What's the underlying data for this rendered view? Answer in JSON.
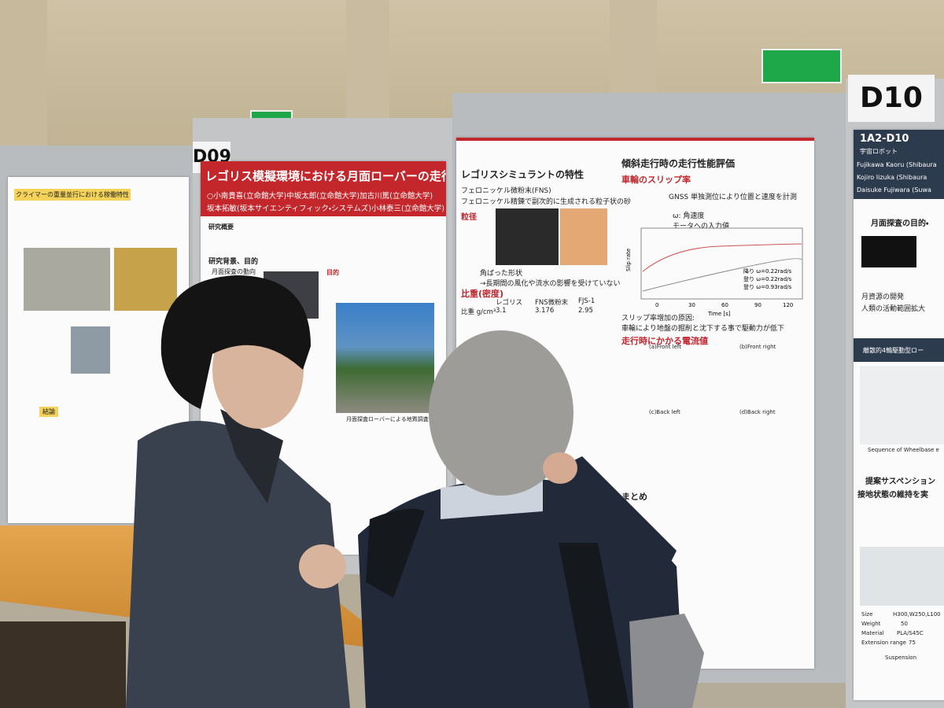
{
  "signs": {
    "d09": "D09",
    "d10": "D10"
  },
  "poster_left": {
    "heading": "クライマーの重量並行における稼働特性",
    "section": "結論"
  },
  "poster_d09": {
    "title": "レゴリス模擬環境における月面ローバーの走行特性",
    "authors": [
      "○小南貴喜(立命館大学)中坂太郎(立命館大学)加古川篤(立命館大学)",
      "坂本拓敏(坂本サイエンティフィック・システムズ)小林泰三(立命館大学)"
    ],
    "sections": [
      "研究概要",
      "研究背景、目的",
      "月面探査の動向",
      "目的"
    ],
    "caption": "月面探査ローバーによる地質調査"
  },
  "poster_right": {
    "left_title": "レゴリスシミュラントの特性",
    "fns": "フェロニッケル微粉末(FNS)",
    "fns_note": "フェロニッケル精錬で副次的に生成される粒子状の砂",
    "size_heading": "粒径",
    "shape": "角ばった形状",
    "shape_note": "→長期間の風化や流水の影響を受けていない",
    "density_heading": "比重(密度)",
    "table": {
      "header": [
        "レゴリス",
        "FNS微粉末",
        "FJS-1"
      ],
      "row_label": "比重 g/cm³",
      "row": [
        3.1,
        3.176,
        2.95
      ]
    },
    "right_title": "傾斜走行時の走行性能評価",
    "slip_heading": "車輪のスリップ率",
    "gnss": "GNSS 単独測位により位置と速度を計測",
    "omega": "ω: 角速度",
    "motor": "モータへの入力値",
    "chart": {
      "ylabel": "Slip rate",
      "xlabel": "Time [s]",
      "xticks": [
        0,
        30,
        60,
        90,
        120
      ],
      "legend": [
        "降り ω=0.22rad/s",
        "登り ω=0.22rad/s",
        "登り ω=0.93rad/s"
      ]
    },
    "cause": "スリップ率増加の原因:",
    "cause_note": "車輪により地盤の掘削と沈下する事で駆動力が低下",
    "current_heading": "走行時にかかる電流値",
    "panels": [
      "(a)Front left",
      "(b)Front right",
      "(c)Back left",
      "(d)Back right"
    ],
    "summary": "まとめ"
  },
  "poster_d10": {
    "id": "1A2-D10",
    "field": "宇宙ロボット",
    "authors": [
      "Fujikawa Kaoru (Shibaura",
      "Kojiro Iizuka (Shibaura",
      "Daisuke Fujiwara (Suwa"
    ],
    "purpose": "月面探査の目的・",
    "bullets": [
      "月資源の開発",
      "人類の活動範囲拡大"
    ],
    "drive": "離散的4輪駆動型ロー",
    "sequence": "Sequence of Wheelbase e",
    "proposal": [
      "提案サスペンション",
      "接地状態の維持を実"
    ],
    "spec": [
      [
        "Size",
        "H300,W250,L100"
      ],
      [
        "Weight",
        "50"
      ],
      [
        "Material",
        "PLA/S45C"
      ],
      [
        "Extension range",
        "75"
      ]
    ],
    "spec_caption": "Suspension"
  }
}
